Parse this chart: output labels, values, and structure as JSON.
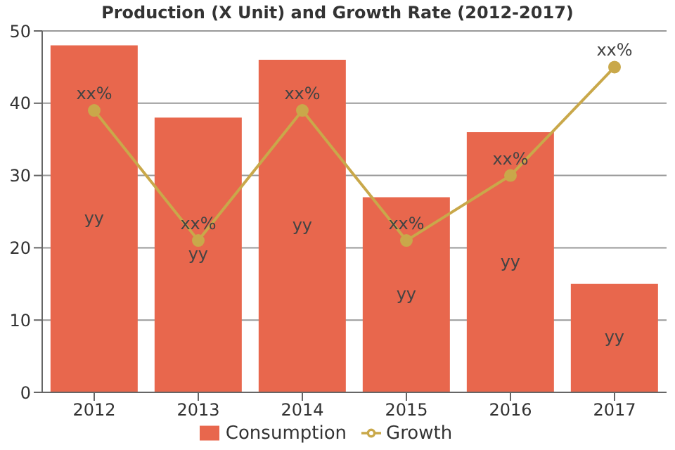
{
  "chart_data": {
    "type": "bar",
    "title": "Production (X Unit) and Growth Rate (2012-2017)",
    "categories": [
      "2012",
      "2013",
      "2014",
      "2015",
      "2016",
      "2017"
    ],
    "series": [
      {
        "name": "Consumption",
        "color": "#e8674d",
        "values": [
          48,
          38,
          46,
          27,
          36,
          15
        ],
        "value_labels": [
          "yy",
          "yy",
          "yy",
          "yy",
          "yy",
          "yy"
        ]
      },
      {
        "name": "Growth",
        "type": "line",
        "color": "#c9a84a",
        "values": [
          39,
          21,
          39,
          21,
          30,
          45
        ],
        "value_labels": [
          "xx%",
          "xx%",
          "xx%",
          "xx%",
          "xx%",
          "xx%"
        ]
      }
    ],
    "ylim": [
      0,
      50
    ],
    "yticks": [
      0,
      10,
      20,
      30,
      40,
      50
    ],
    "grid": "y",
    "legend": "bottom",
    "marker": "circle",
    "line_style": "solid"
  }
}
